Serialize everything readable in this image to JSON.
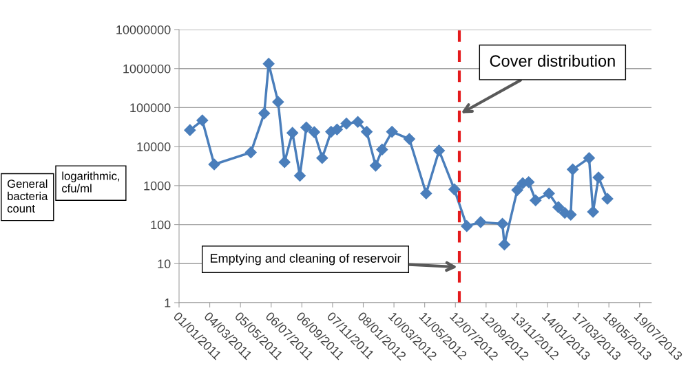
{
  "chart_data": {
    "type": "line",
    "x": [
      "2011-01-23",
      "2011-02-17",
      "2011-03-13",
      "2011-05-26",
      "2011-06-22",
      "2011-07-01",
      "2011-07-20",
      "2011-08-02",
      "2011-08-18",
      "2011-09-02",
      "2011-09-15",
      "2011-10-01",
      "2011-10-17",
      "2011-11-04",
      "2011-11-16",
      "2011-12-05",
      "2011-12-28",
      "2012-01-15",
      "2012-02-02",
      "2012-02-15",
      "2012-03-06",
      "2012-04-10",
      "2012-05-14",
      "2012-06-09",
      "2012-07-10",
      "2012-08-04",
      "2012-09-01",
      "2012-10-15",
      "2012-10-19",
      "2012-11-14",
      "2012-11-25",
      "2012-12-07",
      "2012-12-21",
      "2013-01-17",
      "2013-02-05",
      "2013-02-18",
      "2013-03-02",
      "2013-03-06",
      "2013-04-08",
      "2013-04-16",
      "2013-04-27",
      "2013-05-15"
    ],
    "series": [
      {
        "color": "#4a7ebb",
        "values": [
          26500,
          47000,
          3500,
          7100,
          71000,
          1330000,
          140000,
          4000,
          22500,
          1800,
          31000,
          23500,
          5100,
          24000,
          27500,
          39000,
          43000,
          24000,
          3250,
          8400,
          24000,
          15700,
          630,
          7900,
          800,
          92,
          116,
          105,
          31,
          770,
          1150,
          1230,
          420,
          630,
          280,
          200,
          180,
          2600,
          5100,
          213,
          1620,
          460
        ]
      }
    ],
    "marker": "diamond",
    "line_style": "solid",
    "log": "y",
    "grid": "y",
    "ylim": [
      1,
      10000000
    ],
    "yticks": [
      1,
      10,
      100,
      1000,
      10000,
      100000,
      1000000,
      10000000
    ],
    "xlim": [
      "2011-01-01",
      "2013-08-12"
    ],
    "xticks": [
      {
        "value": "2011-01-01",
        "label": "01/01/2011"
      },
      {
        "value": "2011-03-04",
        "label": "04/03/2011"
      },
      {
        "value": "2011-05-05",
        "label": "05/05/2011"
      },
      {
        "value": "2011-07-06",
        "label": "06/07/2011"
      },
      {
        "value": "2011-09-06",
        "label": "06/09/2011"
      },
      {
        "value": "2011-11-07",
        "label": "07/11/2011"
      },
      {
        "value": "2012-01-08",
        "label": "08/01/2012"
      },
      {
        "value": "2012-03-10",
        "label": "10/03/2012"
      },
      {
        "value": "2012-05-11",
        "label": "11/05/2012"
      },
      {
        "value": "2012-07-12",
        "label": "12/07/2012"
      },
      {
        "value": "2012-09-12",
        "label": "12/09/2012"
      },
      {
        "value": "2012-11-13",
        "label": "13/11/2012"
      },
      {
        "value": "2013-01-14",
        "label": "14/01/2013"
      },
      {
        "value": "2013-03-17",
        "label": "17/03/2013"
      },
      {
        "value": "2013-05-18",
        "label": "18/05/2013"
      },
      {
        "value": "2013-07-19",
        "label": "19/07/2013"
      }
    ],
    "ref_lines": [
      {
        "axis": "x",
        "value": "2012-07-20",
        "color": "#e41a1c",
        "line_style": "dashed"
      }
    ],
    "annotations": [
      "General bacteria count",
      "logarithmic, cfu/ml",
      "Cover distribution",
      "Emptying and cleaning of reservoir"
    ]
  }
}
